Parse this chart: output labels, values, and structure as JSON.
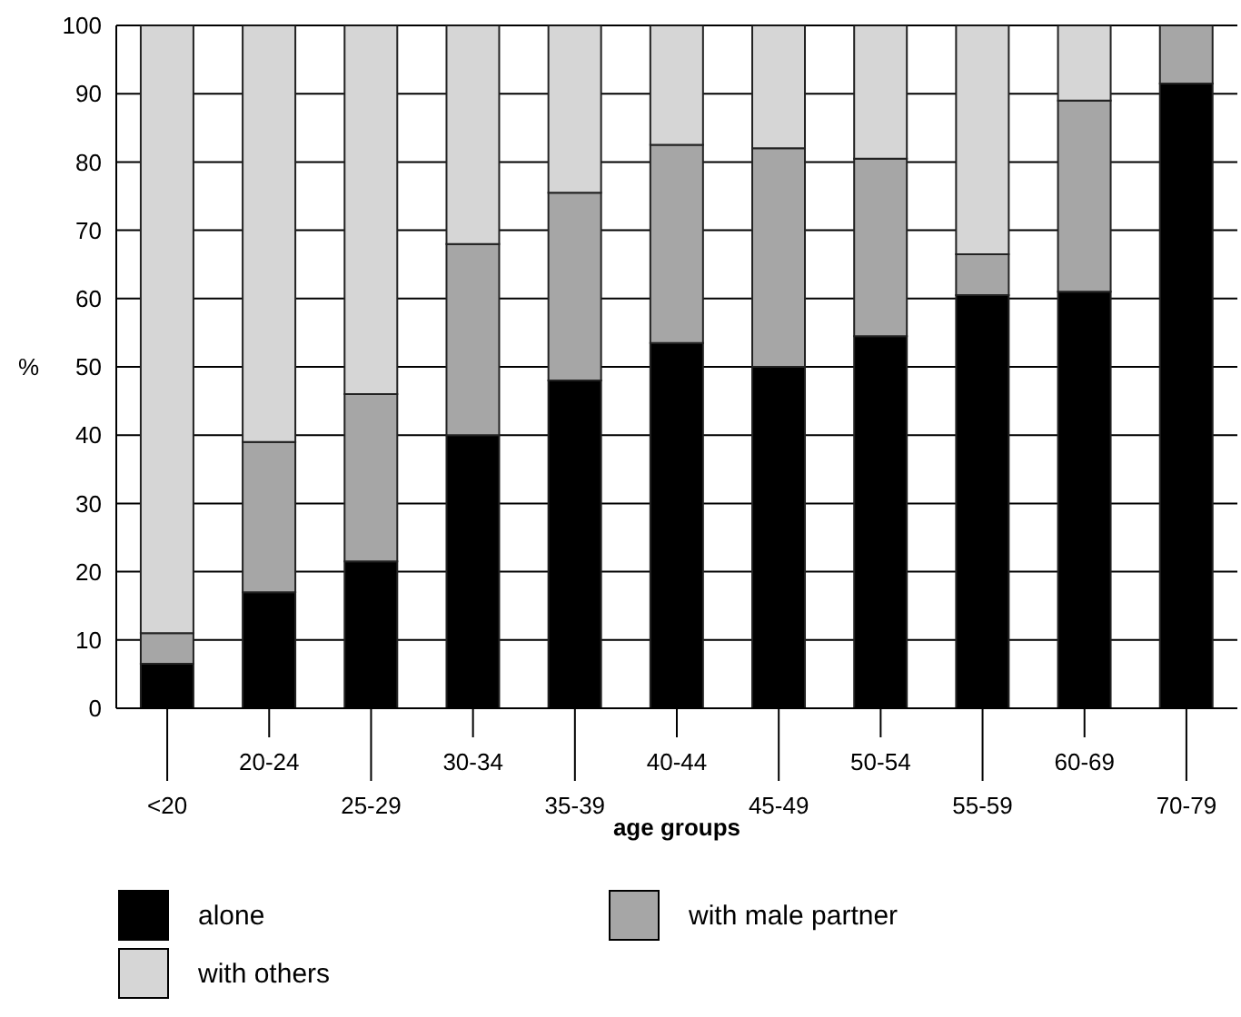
{
  "chart_data": {
    "type": "bar",
    "stacked": true,
    "xlabel": "age groups",
    "ylabel": "%",
    "categories": [
      "<20",
      "20-24",
      "25-29",
      "30-34",
      "35-39",
      "40-44",
      "45-49",
      "50-54",
      "55-59",
      "60-69",
      "70-79"
    ],
    "series": [
      {
        "name": "alone",
        "color": "#000000",
        "values": [
          6.5,
          17,
          21.5,
          40,
          48,
          53.5,
          50,
          54.5,
          60.5,
          61,
          91.5
        ]
      },
      {
        "name": "with male partner",
        "color": "#a6a6a6",
        "values": [
          4.5,
          22,
          24.5,
          28,
          27.5,
          29,
          32,
          26,
          6,
          28,
          8.5
        ]
      },
      {
        "name": "with others",
        "color": "#d6d6d6",
        "values": [
          89,
          61,
          54,
          32,
          24.5,
          17.5,
          18,
          19.5,
          33.5,
          11,
          0
        ]
      }
    ],
    "ylim": [
      0,
      100
    ],
    "yticks": [
      0,
      10,
      20,
      30,
      40,
      50,
      60,
      70,
      80,
      90,
      100
    ],
    "grid": "y",
    "legend": "bottom"
  }
}
